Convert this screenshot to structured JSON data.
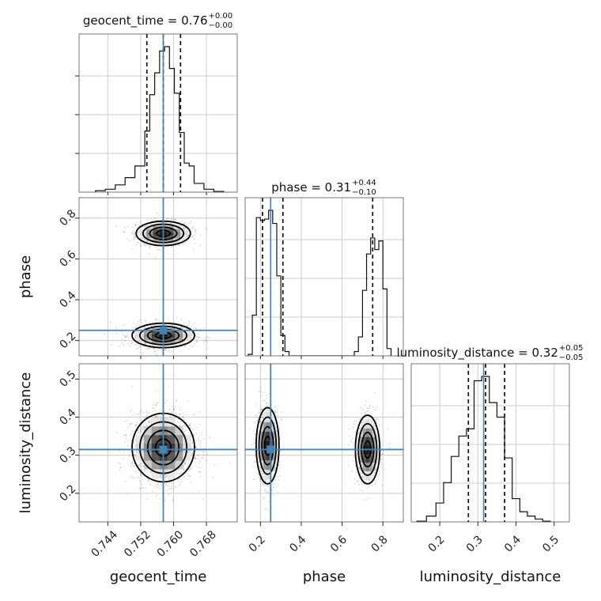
{
  "chart_data": {
    "type": "corner",
    "parameters": [
      "geocent_time",
      "phase",
      "luminosity_distance"
    ],
    "axis_labels": {
      "geocent_time": "geocent_time",
      "phase": "phase",
      "luminosity_distance": "luminosity_distance"
    },
    "ranges": {
      "geocent_time": [
        0.737,
        0.7755
      ],
      "phase": [
        0.125,
        0.9
      ],
      "luminosity_distance": [
        0.125,
        0.54
      ]
    },
    "ticks": {
      "geocent_time": [
        {
          "v": 0.744,
          "label": "0.744"
        },
        {
          "v": 0.752,
          "label": "0.752"
        },
        {
          "v": 0.76,
          "label": "0.760"
        },
        {
          "v": 0.768,
          "label": "0.768"
        }
      ],
      "phase": [
        {
          "v": 0.2,
          "label": "0.2"
        },
        {
          "v": 0.4,
          "label": "0.4"
        },
        {
          "v": 0.6,
          "label": "0.6"
        },
        {
          "v": 0.8,
          "label": "0.8"
        }
      ],
      "luminosity_distance": [
        {
          "v": 0.2,
          "label": "0.2"
        },
        {
          "v": 0.3,
          "label": "0.3"
        },
        {
          "v": 0.4,
          "label": "0.4"
        },
        {
          "v": 0.5,
          "label": "0.5"
        }
      ]
    },
    "truths": {
      "geocent_time": 0.7575,
      "phase": 0.25,
      "luminosity_distance": 0.315
    },
    "truth_color": "#4682b4",
    "titles": [
      {
        "param": "geocent_time",
        "prefix": "geocent_time = 0.76",
        "sup": "+0.00",
        "sub": "−0.00"
      },
      {
        "param": "phase",
        "prefix": "phase = 0.31",
        "sup": "+0.44",
        "sub": "−0.10"
      },
      {
        "param": "luminosity_distance",
        "prefix": "luminosity_distance = 0.32",
        "sup": "+0.05",
        "sub": "−0.05"
      }
    ],
    "quantiles": {
      "geocent_time": [
        0.7535,
        0.7575,
        0.7617
      ],
      "phase": [
        0.21,
        0.31,
        0.75
      ],
      "luminosity_distance": [
        0.275,
        0.32,
        0.37
      ]
    },
    "histograms": {
      "geocent_time": {
        "edges": [
          0.741,
          0.7434,
          0.7458,
          0.7482,
          0.7506,
          0.753,
          0.7542,
          0.7554,
          0.7566,
          0.7578,
          0.759,
          0.7602,
          0.7614,
          0.7626,
          0.7638,
          0.765,
          0.7674,
          0.7698,
          0.7722
        ],
        "counts": [
          0.01,
          0.02,
          0.05,
          0.1,
          0.18,
          0.42,
          0.67,
          0.82,
          0.97,
          1.0,
          0.85,
          0.68,
          0.41,
          0.2,
          0.18,
          0.06,
          0.02,
          0.005
        ]
      },
      "phase": {
        "edges": [
          0.14,
          0.16,
          0.18,
          0.2,
          0.22,
          0.24,
          0.26,
          0.28,
          0.3,
          0.32,
          0.34,
          0.36,
          0.38,
          0.4,
          0.42,
          0.44,
          0.46,
          0.48,
          0.5,
          0.52,
          0.54,
          0.56,
          0.58,
          0.6,
          0.62,
          0.64,
          0.66,
          0.68,
          0.7,
          0.72,
          0.74,
          0.76,
          0.78,
          0.8,
          0.82,
          0.84
        ],
        "counts": [
          0.01,
          0.28,
          0.95,
          0.93,
          0.94,
          1.0,
          0.91,
          0.55,
          0.14,
          0.03,
          0.0,
          0.0,
          0.0,
          0.0,
          0.0,
          0.0,
          0.0,
          0.0,
          0.0,
          0.0,
          0.0,
          0.0,
          0.0,
          0.0,
          0.0,
          0.0,
          0.03,
          0.13,
          0.45,
          0.7,
          0.81,
          0.73,
          0.79,
          0.46,
          0.05
        ]
      },
      "luminosity_distance": {
        "edges": [
          0.14,
          0.165,
          0.19,
          0.21,
          0.23,
          0.25,
          0.27,
          0.29,
          0.31,
          0.33,
          0.35,
          0.37,
          0.39,
          0.41,
          0.43,
          0.45,
          0.47,
          0.49
        ],
        "counts": [
          0.005,
          0.04,
          0.13,
          0.27,
          0.45,
          0.59,
          0.64,
          0.97,
          1.0,
          0.82,
          0.72,
          0.44,
          0.16,
          0.07,
          0.04,
          0.02,
          0.005
        ]
      }
    },
    "clusters": {
      "geocent_time|phase": [
        {
          "cx": 0.7575,
          "cy": 0.725,
          "sx": 0.0033,
          "sy": 0.03,
          "n": 900
        },
        {
          "cx": 0.7575,
          "cy": 0.225,
          "sx": 0.0038,
          "sy": 0.03,
          "n": 1000
        }
      ],
      "geocent_time|luminosity_distance": [
        {
          "cx": 0.7575,
          "cy": 0.32,
          "sx": 0.0038,
          "sy": 0.045,
          "n": 1800
        }
      ],
      "phase|luminosity_distance": [
        {
          "cx": 0.235,
          "cy": 0.325,
          "sx": 0.028,
          "sy": 0.05,
          "n": 1000
        },
        {
          "cx": 0.725,
          "cy": 0.315,
          "sx": 0.03,
          "sy": 0.045,
          "n": 850
        }
      ]
    },
    "grid": true,
    "colors": {
      "hist": "#111111",
      "quantile": "#000000",
      "grid": "#cccccc"
    }
  }
}
